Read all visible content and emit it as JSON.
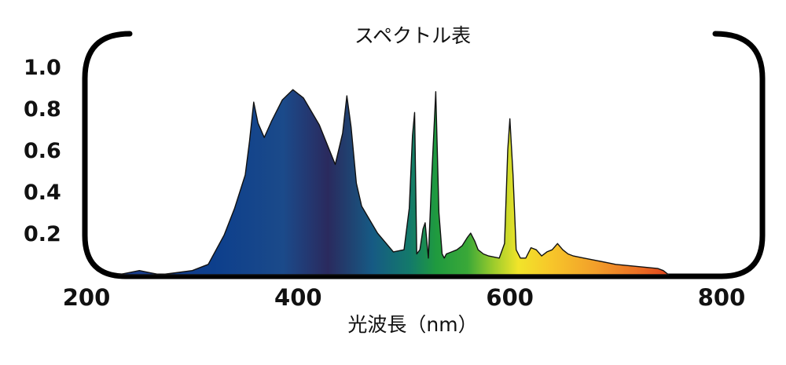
{
  "chart_data": {
    "type": "area",
    "title": "スペクトル表",
    "xlabel": "光波長（nm）",
    "ylabel": "",
    "xlim": [
      200,
      800
    ],
    "ylim": [
      0,
      1.0
    ],
    "x_ticks": [
      "200",
      "400",
      "600",
      "800"
    ],
    "y_ticks": [
      "0.2",
      "0.4",
      "0.6",
      "0.8",
      "1.0"
    ],
    "grid": false,
    "legend": "none",
    "fill": "spectral rainbow gradient",
    "series": [
      {
        "x": [
          230,
          250,
          260,
          270,
          300,
          315,
          330,
          340,
          350,
          354,
          358,
          362,
          368,
          375,
          385,
          395,
          405,
          420,
          435,
          442,
          446,
          450,
          455,
          460,
          475,
          490,
          500,
          505,
          508,
          510,
          512,
          515,
          518,
          520,
          523,
          526,
          530,
          533,
          536,
          538,
          540,
          545,
          550,
          555,
          560,
          563,
          567,
          570,
          575,
          580,
          590,
          595,
          598,
          600,
          603,
          606,
          610,
          615,
          620,
          625,
          630,
          635,
          640,
          645,
          650,
          655,
          660,
          670,
          680,
          700,
          720,
          740,
          745,
          750
        ],
        "y": [
          0.0,
          0.02,
          0.01,
          0.0,
          0.02,
          0.05,
          0.19,
          0.32,
          0.48,
          0.64,
          0.83,
          0.73,
          0.66,
          0.74,
          0.84,
          0.89,
          0.85,
          0.72,
          0.53,
          0.68,
          0.86,
          0.71,
          0.44,
          0.33,
          0.2,
          0.11,
          0.12,
          0.32,
          0.67,
          0.78,
          0.1,
          0.12,
          0.22,
          0.25,
          0.08,
          0.45,
          0.88,
          0.3,
          0.1,
          0.08,
          0.1,
          0.11,
          0.12,
          0.14,
          0.18,
          0.2,
          0.16,
          0.12,
          0.1,
          0.09,
          0.08,
          0.15,
          0.6,
          0.75,
          0.48,
          0.12,
          0.08,
          0.08,
          0.13,
          0.12,
          0.09,
          0.11,
          0.12,
          0.15,
          0.12,
          0.1,
          0.09,
          0.08,
          0.07,
          0.05,
          0.04,
          0.03,
          0.02,
          0.0
        ]
      }
    ]
  }
}
